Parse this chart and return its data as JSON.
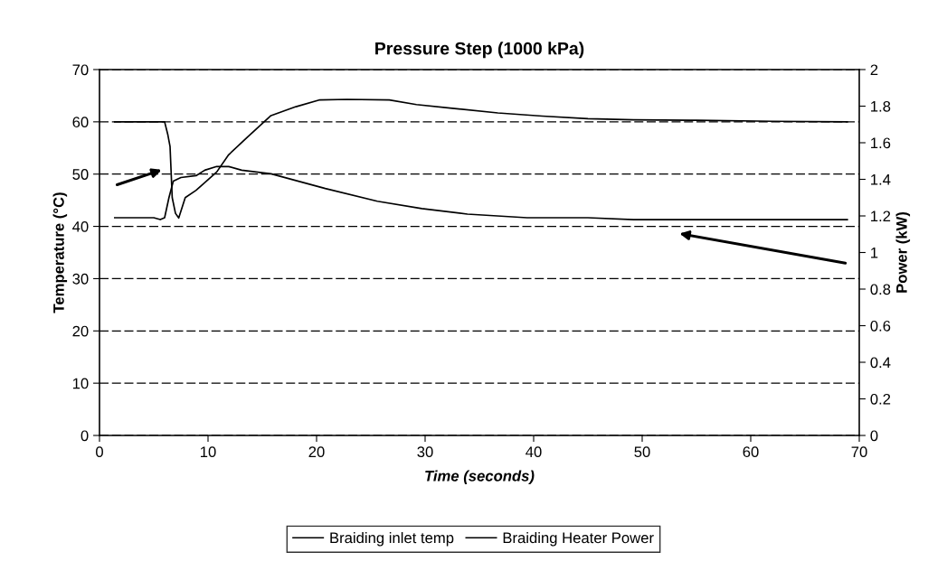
{
  "chart_data": {
    "type": "line",
    "title": "Pressure Step (1000 kPa)",
    "xlabel": "Time (seconds)",
    "ylabel": "Temperature (°C)",
    "y2label": "Power (kW)",
    "xlim": [
      0,
      70
    ],
    "xticks": [
      0,
      10,
      20,
      30,
      40,
      50,
      60,
      70
    ],
    "ylim": [
      0,
      70
    ],
    "yticks": [
      0,
      10,
      20,
      30,
      40,
      50,
      60,
      70
    ],
    "y2lim": [
      0,
      2
    ],
    "y2ticks": [
      0,
      {
        "value": 0.2,
        "label": "0.2"
      },
      {
        "value": 0.4,
        "label": "0.4"
      },
      {
        "value": 0.6,
        "label": "0.6"
      },
      {
        "value": 0.8,
        "label": "0.8"
      },
      1,
      {
        "value": 1.2,
        "label": "1.2"
      },
      {
        "value": 1.4,
        "label": "1.4"
      },
      {
        "value": 1.6,
        "label": "1.6"
      },
      {
        "value": 1.8,
        "label": "1.8"
      },
      2
    ],
    "grid": "y",
    "legend": "bottom",
    "marker": "none",
    "line_style": "solid",
    "series": [
      {
        "name": "Braiding inlet temp",
        "color": "#000000",
        "x": [
          1.4,
          5.5,
          6.0,
          6.3,
          6.5,
          6.7,
          7.0,
          7.3,
          7.9,
          8.9,
          10.8,
          11.9,
          13.6,
          15.8,
          18.1,
          20.3,
          22.8,
          26.7,
          29.2,
          32.5,
          36.7,
          40.8,
          45,
          49.2,
          55,
          62,
          68.9
        ],
        "values": [
          60,
          60,
          60,
          57.5,
          55.3,
          45.5,
          42.5,
          41.6,
          45.5,
          46.9,
          50.4,
          53.7,
          57,
          61.2,
          62.9,
          64.2,
          64.3,
          64.2,
          63.3,
          62.6,
          61.7,
          61.1,
          60.6,
          60.4,
          60.3,
          60.1,
          60.0
        ]
      },
      {
        "name": "Braiding Heater Power",
        "color": "#000000",
        "axis": "y2",
        "x": [
          1.4,
          5.0,
          5.6,
          6.0,
          6.4,
          6.8,
          7.5,
          8.9,
          9.7,
          10.8,
          11.9,
          13.1,
          15.8,
          20.8,
          25.6,
          29.7,
          33.9,
          39.4,
          45,
          49.2,
          60,
          68.9
        ],
        "values": [
          1.19,
          1.19,
          1.18,
          1.19,
          1.3,
          1.39,
          1.41,
          1.42,
          1.45,
          1.47,
          1.47,
          1.45,
          1.43,
          1.35,
          1.28,
          1.24,
          1.21,
          1.19,
          1.19,
          1.18,
          1.18,
          1.18
        ]
      }
    ]
  }
}
